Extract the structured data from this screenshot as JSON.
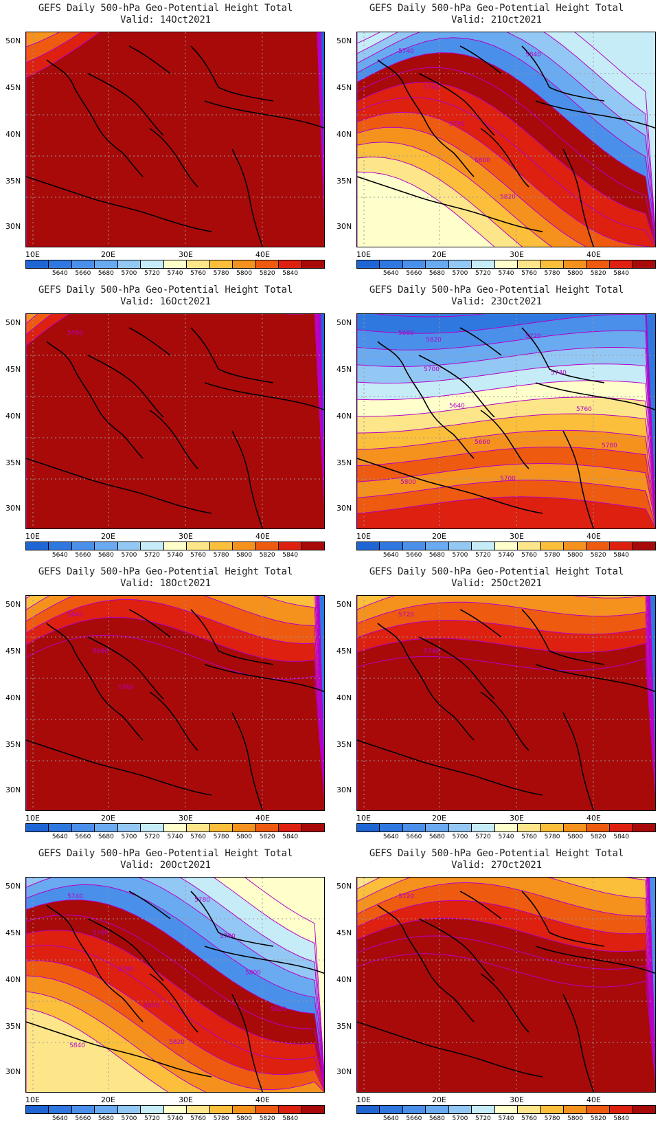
{
  "colorbar": {
    "labels": [
      "5640",
      "5660",
      "5680",
      "5700",
      "5720",
      "5740",
      "5760",
      "5780",
      "5800",
      "5820",
      "5840"
    ],
    "colors": [
      "#1f66d4",
      "#2f78e0",
      "#4a90ea",
      "#6aaaf0",
      "#94c8f4",
      "#c6ecf8",
      "#ffffcc",
      "#fde68a",
      "#fbbf3b",
      "#f5921e",
      "#ee5a10",
      "#dd2010",
      "#a80a0a"
    ]
  },
  "axes": {
    "y": [
      "50N",
      "45N",
      "40N",
      "35N",
      "30N"
    ],
    "x": [
      "10E",
      "20E",
      "30E",
      "40E"
    ]
  },
  "contour_color": "#b400c8",
  "panels": [
    {
      "title": "GEFS Daily 500-hPa Geo-Potential Height Total",
      "valid": "Valid: 14Oct2021",
      "labels": []
    },
    {
      "title": "GEFS Daily 500-hPa Geo-Potential Height Total",
      "valid": "Valid: 21Oct2021",
      "labels": [
        "5740",
        "5760",
        "5780",
        "5800",
        "5820",
        "5840"
      ]
    },
    {
      "title": "GEFS Daily 500-hPa Geo-Potential Height Total",
      "valid": "Valid: 16Oct2021",
      "labels": [
        "5760"
      ]
    },
    {
      "title": "GEFS Daily 500-hPa Geo-Potential Height Total",
      "valid": "Valid: 23Oct2021",
      "labels": [
        "5680",
        "5700",
        "5640",
        "5660",
        "5700",
        "5720",
        "5740",
        "5760",
        "5780",
        "5800",
        "5820"
      ]
    },
    {
      "title": "GEFS Daily 500-hPa Geo-Potential Height Total",
      "valid": "Valid: 18Oct2021",
      "labels": [
        "5640",
        "5660",
        "5760"
      ]
    },
    {
      "title": "GEFS Daily 500-hPa Geo-Potential Height Total",
      "valid": "Valid: 25Oct2021",
      "labels": [
        "5720",
        "5740"
      ]
    },
    {
      "title": "GEFS Daily 500-hPa Geo-Potential Height Total",
      "valid": "Valid: 20Oct2021",
      "labels": [
        "5740",
        "5760",
        "5780",
        "5800",
        "5820",
        "5780",
        "5760",
        "5800",
        "5820",
        "5840"
      ]
    },
    {
      "title": "GEFS Daily 500-hPa Geo-Potential Height Total",
      "valid": "Valid: 27Oct2021",
      "labels": [
        "5720"
      ]
    }
  ]
}
